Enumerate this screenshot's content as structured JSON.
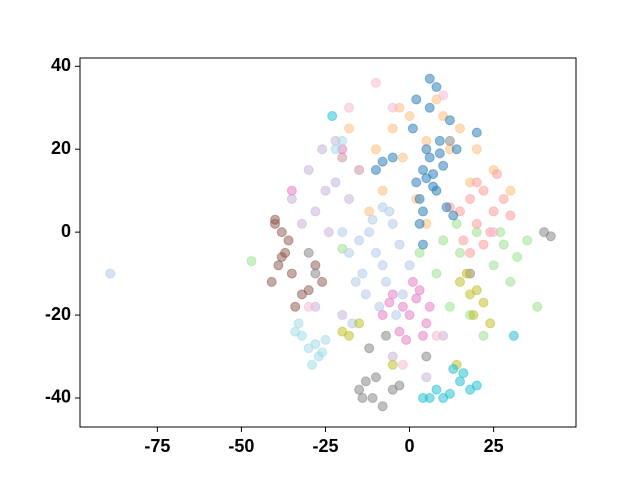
{
  "chart_data": {
    "type": "scatter",
    "xlim": [
      -98,
      49.5
    ],
    "ylim": [
      -47,
      42
    ],
    "xticks": [
      -75,
      -50,
      -25,
      0,
      25
    ],
    "yticks": [
      -40,
      -20,
      0,
      20,
      40
    ],
    "alpha": 0.5,
    "series": [
      {
        "color": "#aec7e8",
        "x": [
          -15,
          -12,
          -10,
          -8,
          -5,
          -3,
          -14,
          -18,
          -20,
          -7,
          -2,
          -11,
          -9,
          -16,
          -6,
          0,
          -13,
          -4,
          -89,
          -17,
          -8
        ],
        "y": [
          -2,
          0,
          -5,
          -8,
          2,
          -3,
          -10,
          -5,
          0,
          -12,
          -15,
          3,
          -18,
          -12,
          5,
          -8,
          -15,
          -20,
          -10,
          -22,
          6
        ]
      },
      {
        "color": "#ffbb78",
        "x": [
          -5,
          0,
          5,
          -10,
          -15,
          -3,
          10,
          15,
          20,
          2,
          -8,
          -20,
          25,
          -12,
          8,
          18,
          -2,
          5,
          -18,
          12,
          30
        ],
        "y": [
          25,
          28,
          22,
          20,
          15,
          30,
          28,
          25,
          20,
          8,
          10,
          18,
          15,
          5,
          32,
          12,
          18,
          2,
          25,
          20,
          10
        ]
      },
      {
        "color": "#98df8a",
        "x": [
          10,
          15,
          20,
          25,
          28,
          30,
          32,
          12,
          18,
          35,
          22,
          8,
          27,
          3,
          14,
          -47,
          -20,
          38
        ],
        "y": [
          -2,
          -5,
          0,
          -8,
          -3,
          -12,
          -6,
          -18,
          -20,
          -2,
          -25,
          -10,
          0,
          -5,
          2,
          -7,
          -4,
          -18
        ]
      },
      {
        "color": "#ff9896",
        "x": [
          15,
          18,
          20,
          22,
          25,
          28,
          16,
          24,
          20,
          30,
          12,
          26,
          22,
          18
        ],
        "y": [
          5,
          8,
          2,
          10,
          5,
          8,
          -2,
          0,
          12,
          4,
          6,
          14,
          -3,
          -5
        ]
      },
      {
        "color": "#c5b0d5",
        "x": [
          -30,
          -25,
          -28,
          -22,
          -35,
          -20,
          -26,
          -32,
          -18,
          -24,
          -15,
          -22,
          -28,
          -5,
          5,
          10,
          -20
        ],
        "y": [
          15,
          10,
          5,
          12,
          8,
          18,
          20,
          2,
          8,
          0,
          15,
          22,
          -18,
          -30,
          -35,
          -25,
          -20
        ]
      },
      {
        "color": "#8c564b",
        "x": [
          -40,
          -38,
          -36,
          -39,
          -41,
          -37,
          -35,
          -32,
          -30,
          -28,
          -34,
          -40,
          -38,
          -26
        ],
        "y": [
          3,
          0,
          -2,
          -8,
          -12,
          -5,
          -10,
          -15,
          -14,
          -8,
          -18,
          2,
          -6,
          -12
        ]
      },
      {
        "color": "#e377c2",
        "x": [
          -5,
          -2,
          0,
          2,
          5,
          -3,
          3,
          -8,
          1,
          6,
          -1,
          4,
          -6,
          -35,
          -20
        ],
        "y": [
          -15,
          -18,
          -20,
          -16,
          -22,
          -24,
          -14,
          -20,
          -12,
          -18,
          -26,
          -25,
          -17,
          10,
          20
        ]
      },
      {
        "color": "#7f7f7f",
        "x": [
          -15,
          -13,
          -11,
          -8,
          -5,
          -10,
          -14,
          -3,
          -7,
          40,
          42,
          -30,
          -28,
          -12,
          5,
          18,
          12
        ],
        "y": [
          -38,
          -36,
          -40,
          -42,
          -38,
          -35,
          -40,
          -37,
          -25,
          0,
          -1,
          -5,
          -10,
          -28,
          -30,
          -10,
          22
        ]
      },
      {
        "color": "#bcbd22",
        "x": [
          15,
          18,
          20,
          22,
          17,
          19,
          -15,
          -18,
          -20,
          -5,
          14,
          24
        ],
        "y": [
          -12,
          -15,
          -14,
          -17,
          -10,
          -20,
          -22,
          -25,
          -24,
          -32,
          -32,
          -22
        ]
      },
      {
        "color": "#17becf",
        "x": [
          8,
          10,
          12,
          15,
          18,
          6,
          13,
          16,
          20,
          -23,
          31,
          4
        ],
        "y": [
          -38,
          -40,
          -39,
          -36,
          -38,
          -40,
          -33,
          -34,
          -37,
          28,
          -25,
          -40
        ]
      },
      {
        "color": "#9edae5",
        "x": [
          -33,
          -32,
          -30,
          -28,
          -25,
          -27,
          -34,
          -29,
          -26,
          -20,
          -22
        ],
        "y": [
          -22,
          -25,
          -28,
          -27,
          -26,
          -30,
          -24,
          -32,
          -29,
          22,
          20
        ]
      },
      {
        "color": "#f7b6d2",
        "x": [
          -10,
          -5,
          10,
          -30,
          -2,
          25,
          -18,
          8
        ],
        "y": [
          36,
          30,
          33,
          -18,
          -32,
          0,
          30,
          -25
        ]
      },
      {
        "color": "#1f77b4",
        "x": [
          2,
          4,
          6,
          8,
          5,
          3,
          7,
          9,
          10,
          1,
          4,
          6,
          8,
          12,
          -5,
          -8,
          3,
          5,
          7,
          11,
          14,
          6,
          2,
          9,
          4,
          20,
          -10,
          13
        ],
        "y": [
          12,
          15,
          18,
          10,
          20,
          8,
          14,
          22,
          16,
          25,
          5,
          30,
          35,
          27,
          18,
          17,
          2,
          13,
          11,
          6,
          20,
          37,
          32,
          19,
          -3,
          24,
          15,
          4
        ]
      }
    ]
  }
}
